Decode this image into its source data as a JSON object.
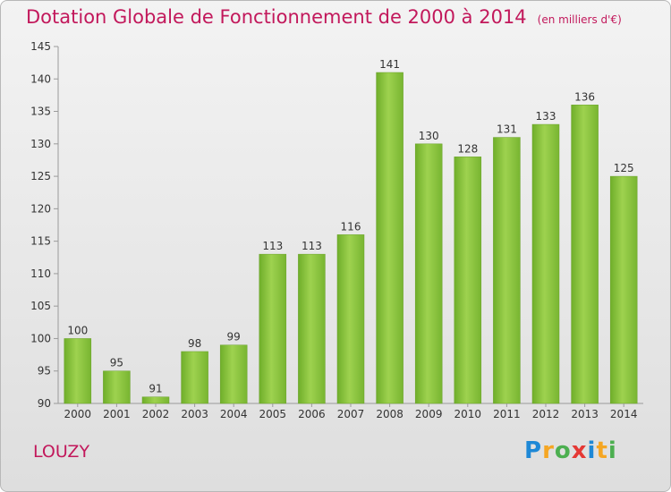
{
  "chart_data": {
    "type": "bar",
    "title": "Dotation Globale de Fonctionnement de 2000 à 2014",
    "subtitle": "(en milliers d'€)",
    "categories": [
      "2000",
      "2001",
      "2002",
      "2003",
      "2004",
      "2005",
      "2006",
      "2007",
      "2008",
      "2009",
      "2010",
      "2011",
      "2012",
      "2013",
      "2014"
    ],
    "values": [
      100,
      95,
      91,
      98,
      99,
      113,
      113,
      116,
      141,
      130,
      128,
      131,
      133,
      136,
      125
    ],
    "ylim": [
      90,
      145
    ],
    "yticks": [
      90,
      95,
      100,
      105,
      110,
      115,
      120,
      125,
      130,
      135,
      140,
      145
    ],
    "xlabel": "",
    "ylabel": "",
    "grid": false,
    "bar_color": "#8cc63f"
  },
  "commune": "LOUZY",
  "logo": {
    "text": "Proxiti",
    "letters": [
      "P",
      "r",
      "o",
      "x",
      "i",
      "t",
      "i"
    ]
  }
}
